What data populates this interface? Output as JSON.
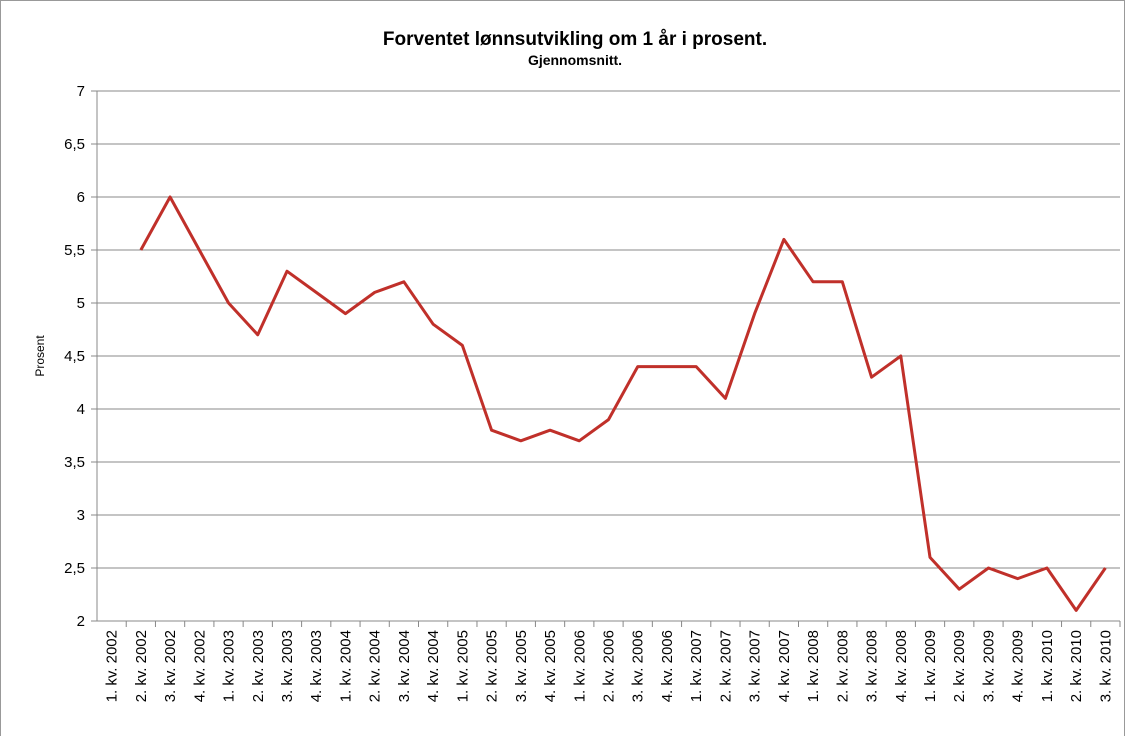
{
  "chart_data": {
    "type": "line",
    "title": "Forventet lønnsutvikling om 1 år i prosent.",
    "subtitle": "Gjennomsnitt.",
    "ylabel": "Prosent",
    "categories": [
      "1. kv. 2002",
      "2. kv. 2002",
      "3. kv. 2002",
      "4. kv. 2002",
      "1. kv. 2003",
      "2. kv. 2003",
      "3. kv. 2003",
      "4. kv. 2003",
      "1. kv. 2004",
      "2. kv. 2004",
      "3. kv. 2004",
      "4. kv. 2004",
      "1. kv. 2005",
      "2. kv. 2005",
      "3. kv. 2005",
      "4. kv. 2005",
      "1. kv. 2006",
      "2. kv. 2006",
      "3. kv. 2006",
      "4. kv. 2006",
      "1. kv. 2007",
      "2. kv. 2007",
      "3. kv. 2007",
      "4. kv. 2007",
      "1. kv. 2008",
      "2. kv. 2008",
      "3. kv. 2008",
      "4. kv. 2008",
      "1. kv. 2009",
      "2. kv. 2009",
      "3. kv. 2009",
      "4. kv. 2009",
      "1. kv. 2010",
      "2. kv. 2010",
      "3. kv. 2010"
    ],
    "values": [
      null,
      5.5,
      6.0,
      5.5,
      5.0,
      4.7,
      5.3,
      5.1,
      4.9,
      5.1,
      5.2,
      4.8,
      4.6,
      3.8,
      3.7,
      3.8,
      3.7,
      3.9,
      4.4,
      4.4,
      4.4,
      4.1,
      4.9,
      5.6,
      5.2,
      5.2,
      4.3,
      4.5,
      2.6,
      2.3,
      2.5,
      2.4,
      2.5,
      2.1,
      2.5
    ],
    "color": "#c0302a",
    "ylim": [
      2,
      7
    ],
    "yticks": [
      2,
      {
        "value": 2.5,
        "label": "2,5"
      },
      3,
      {
        "value": 3.5,
        "label": "3,5"
      },
      4,
      {
        "value": 4.5,
        "label": "4,5"
      },
      5,
      {
        "value": 5.5,
        "label": "5,5"
      },
      6,
      {
        "value": 6.5,
        "label": "6,5"
      },
      7
    ],
    "grid": true
  }
}
